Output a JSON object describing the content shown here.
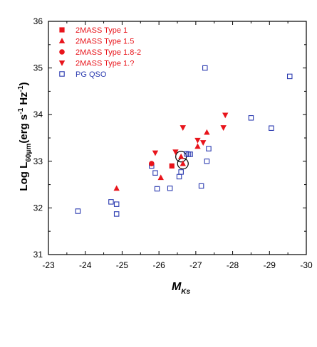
{
  "chart_data": {
    "type": "scatter",
    "title": "",
    "xlabel": "M",
    "xlabel_sub": "Ks",
    "ylabel": "Log L",
    "ylabel_sub": "60μm",
    "ylabel_units": "(erg s",
    "ylabel_units_exp1": "-1",
    "ylabel_units_mid": " Hz",
    "ylabel_units_exp2": "-1",
    "ylabel_units_end": ")",
    "xlim": [
      -23,
      -30
    ],
    "ylim": [
      31,
      36
    ],
    "x_ticks": [
      -23,
      -24,
      -25,
      -26,
      -27,
      -28,
      -29,
      -30
    ],
    "x_tick_labels": [
      "-23",
      "-24",
      "-25",
      "-26",
      "-27",
      "-28",
      "-29",
      "-30"
    ],
    "y_ticks": [
      31,
      32,
      33,
      34,
      35,
      36
    ],
    "y_tick_labels": [
      "31",
      "32",
      "33",
      "34",
      "35",
      "36"
    ],
    "grid": false,
    "legend_position": "top-left",
    "series": [
      {
        "name": "2MASS Type 1",
        "marker": "square-filled",
        "color": "#e8141b",
        "points": [
          [
            -26.35,
            32.9
          ]
        ]
      },
      {
        "name": "2MASS Type 1.5",
        "marker": "triangle-up",
        "color": "#e8141b",
        "points": [
          [
            -24.85,
            32.42
          ],
          [
            -26.05,
            32.65
          ],
          [
            -26.6,
            33.1
          ],
          [
            -26.65,
            32.95
          ],
          [
            -27.05,
            33.32
          ],
          [
            -27.3,
            33.62
          ]
        ]
      },
      {
        "name": "2MASS Type 1.8-2",
        "marker": "circle-filled",
        "color": "#e8141b",
        "points": [
          [
            -25.8,
            32.95
          ]
        ]
      },
      {
        "name": "2MASS Type 1.?",
        "marker": "triangle-down",
        "color": "#e8141b",
        "points": [
          [
            -25.9,
            33.18
          ],
          [
            -26.45,
            33.2
          ],
          [
            -26.65,
            33.72
          ],
          [
            -27.05,
            33.45
          ],
          [
            -27.2,
            33.4
          ],
          [
            -27.75,
            33.72
          ],
          [
            -27.8,
            33.99
          ]
        ]
      },
      {
        "name": "PG QSO",
        "marker": "square-open",
        "color": "#2b3bb0",
        "points": [
          [
            -23.8,
            31.93
          ],
          [
            -24.7,
            32.13
          ],
          [
            -24.85,
            32.08
          ],
          [
            -24.85,
            31.87
          ],
          [
            -25.8,
            32.9
          ],
          [
            -25.9,
            32.75
          ],
          [
            -25.95,
            32.41
          ],
          [
            -26.3,
            32.42
          ],
          [
            -26.55,
            32.67
          ],
          [
            -26.6,
            32.77
          ],
          [
            -26.8,
            33.15
          ],
          [
            -26.85,
            33.15
          ],
          [
            -26.75,
            33.16
          ],
          [
            -27.15,
            32.47
          ],
          [
            -27.3,
            33.0
          ],
          [
            -27.35,
            33.27
          ],
          [
            -27.25,
            35.0
          ],
          [
            -28.5,
            33.93
          ],
          [
            -29.05,
            33.71
          ],
          [
            -29.55,
            34.82
          ]
        ]
      }
    ],
    "annotations": [
      {
        "type": "circle",
        "at": [
          -26.6,
          33.1
        ]
      },
      {
        "type": "circle",
        "at": [
          -26.65,
          32.95
        ]
      }
    ]
  }
}
